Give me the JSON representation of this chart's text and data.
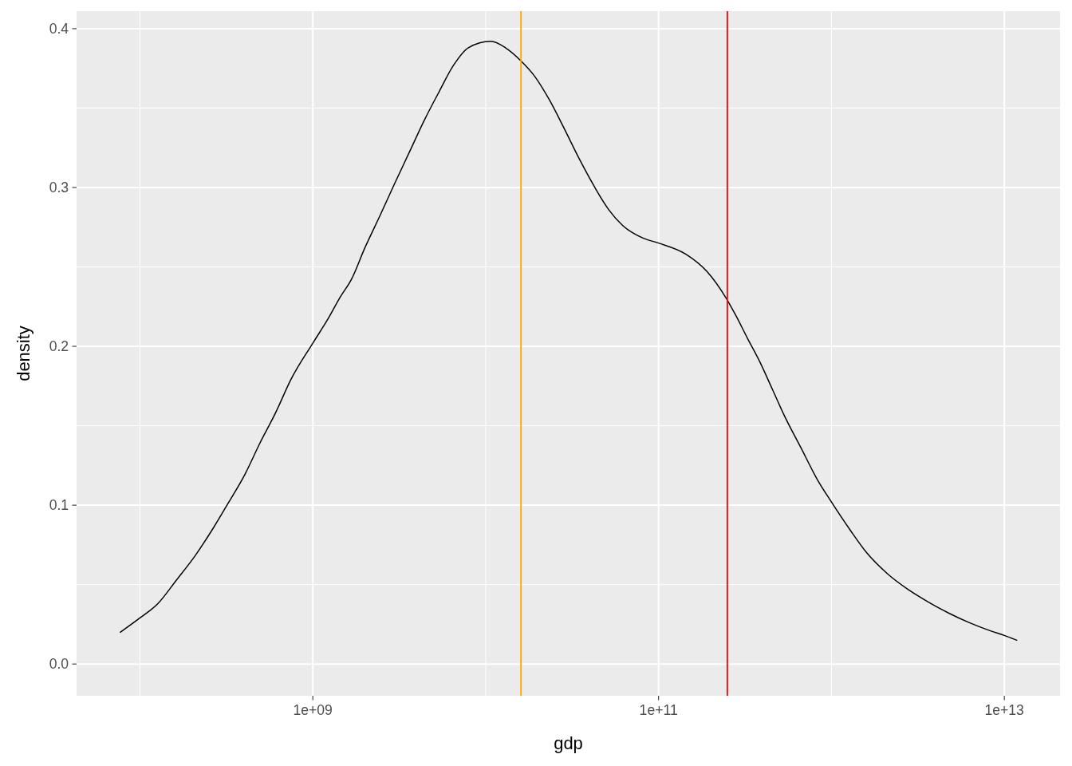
{
  "chart_data": {
    "type": "line",
    "xlabel": "gdp",
    "ylabel": "density",
    "log": "x",
    "grid": true,
    "xlim": [
      43000000.0,
      21000000000000.0
    ],
    "xticks": [
      {
        "value": 100000000.0,
        "label": null
      },
      {
        "value": 1000000000.0,
        "label": "1e+09"
      },
      {
        "value": 10000000000.0,
        "label": null
      },
      {
        "value": 100000000000.0,
        "label": "1e+11"
      },
      {
        "value": 1000000000000.0,
        "label": null
      },
      {
        "value": 10000000000000.0,
        "label": "1e+13"
      }
    ],
    "ylim": [
      -0.02,
      0.411
    ],
    "yticks": [
      {
        "value": 0,
        "label": "0.0"
      },
      {
        "value": 0.05,
        "label": null
      },
      0.1,
      {
        "value": 0.15,
        "label": null
      },
      0.2,
      {
        "value": 0.25,
        "label": null
      },
      0.3,
      {
        "value": 0.35,
        "label": null
      },
      0.4
    ],
    "x": [
      77000000.0,
      100000000.0,
      127000000.0,
      163000000.0,
      208000000.0,
      267000000.0,
      327000000.0,
      403000000.0,
      494000000.0,
      608000000.0,
      746000000.0,
      1000000000.0,
      1220000000.0,
      1440000000.0,
      1670000000.0,
      2000000000.0,
      2440000000.0,
      2960000000.0,
      3610000000.0,
      4400000000.0,
      5360000000.0,
      6520000000.0,
      7940000000.0,
      10700000000.0,
      13000000000.0,
      15900000000.0,
      19200000000.0,
      23400000000.0,
      28500000000.0,
      34800000000.0,
      42300000000.0,
      51500000000.0,
      62100000000.0,
      81800000000.0,
      100000000000.0,
      144000000000.0,
      191000000000.0,
      247000000000.0,
      278000000000.0,
      327000000000.0,
      386000000000.0,
      455000000000.0,
      536000000000.0,
      667000000000.0,
      830000000000.0,
      1000000000000.0,
      1290000000000.0,
      1600000000000.0,
      2100000000000.0,
      2770000000000.0,
      3640000000000.0,
      4780000000000.0,
      6280000000000.0,
      8260000000000.0,
      10000000000000.0,
      11800000000000.0
    ],
    "series": [
      {
        "color": "#000000",
        "values": [
          0.02,
          0.029,
          0.038,
          0.053,
          0.068,
          0.086,
          0.102,
          0.119,
          0.139,
          0.158,
          0.179,
          0.202,
          0.217,
          0.231,
          0.242,
          0.262,
          0.282,
          0.302,
          0.322,
          0.342,
          0.36,
          0.377,
          0.388,
          0.392,
          0.388,
          0.38,
          0.37,
          0.355,
          0.337,
          0.318,
          0.301,
          0.286,
          0.276,
          0.268,
          0.265,
          0.258,
          0.247,
          0.23,
          0.22,
          0.205,
          0.19,
          0.173,
          0.156,
          0.136,
          0.116,
          0.102,
          0.084,
          0.07,
          0.057,
          0.047,
          0.039,
          0.032,
          0.026,
          0.021,
          0.018,
          0.015
        ]
      }
    ],
    "ref_lines": [
      {
        "axis": "x",
        "value": 16000000000.0,
        "color": "#ffa500"
      },
      {
        "axis": "x",
        "value": 250000000000.0,
        "color": "#ff0000"
      }
    ]
  }
}
